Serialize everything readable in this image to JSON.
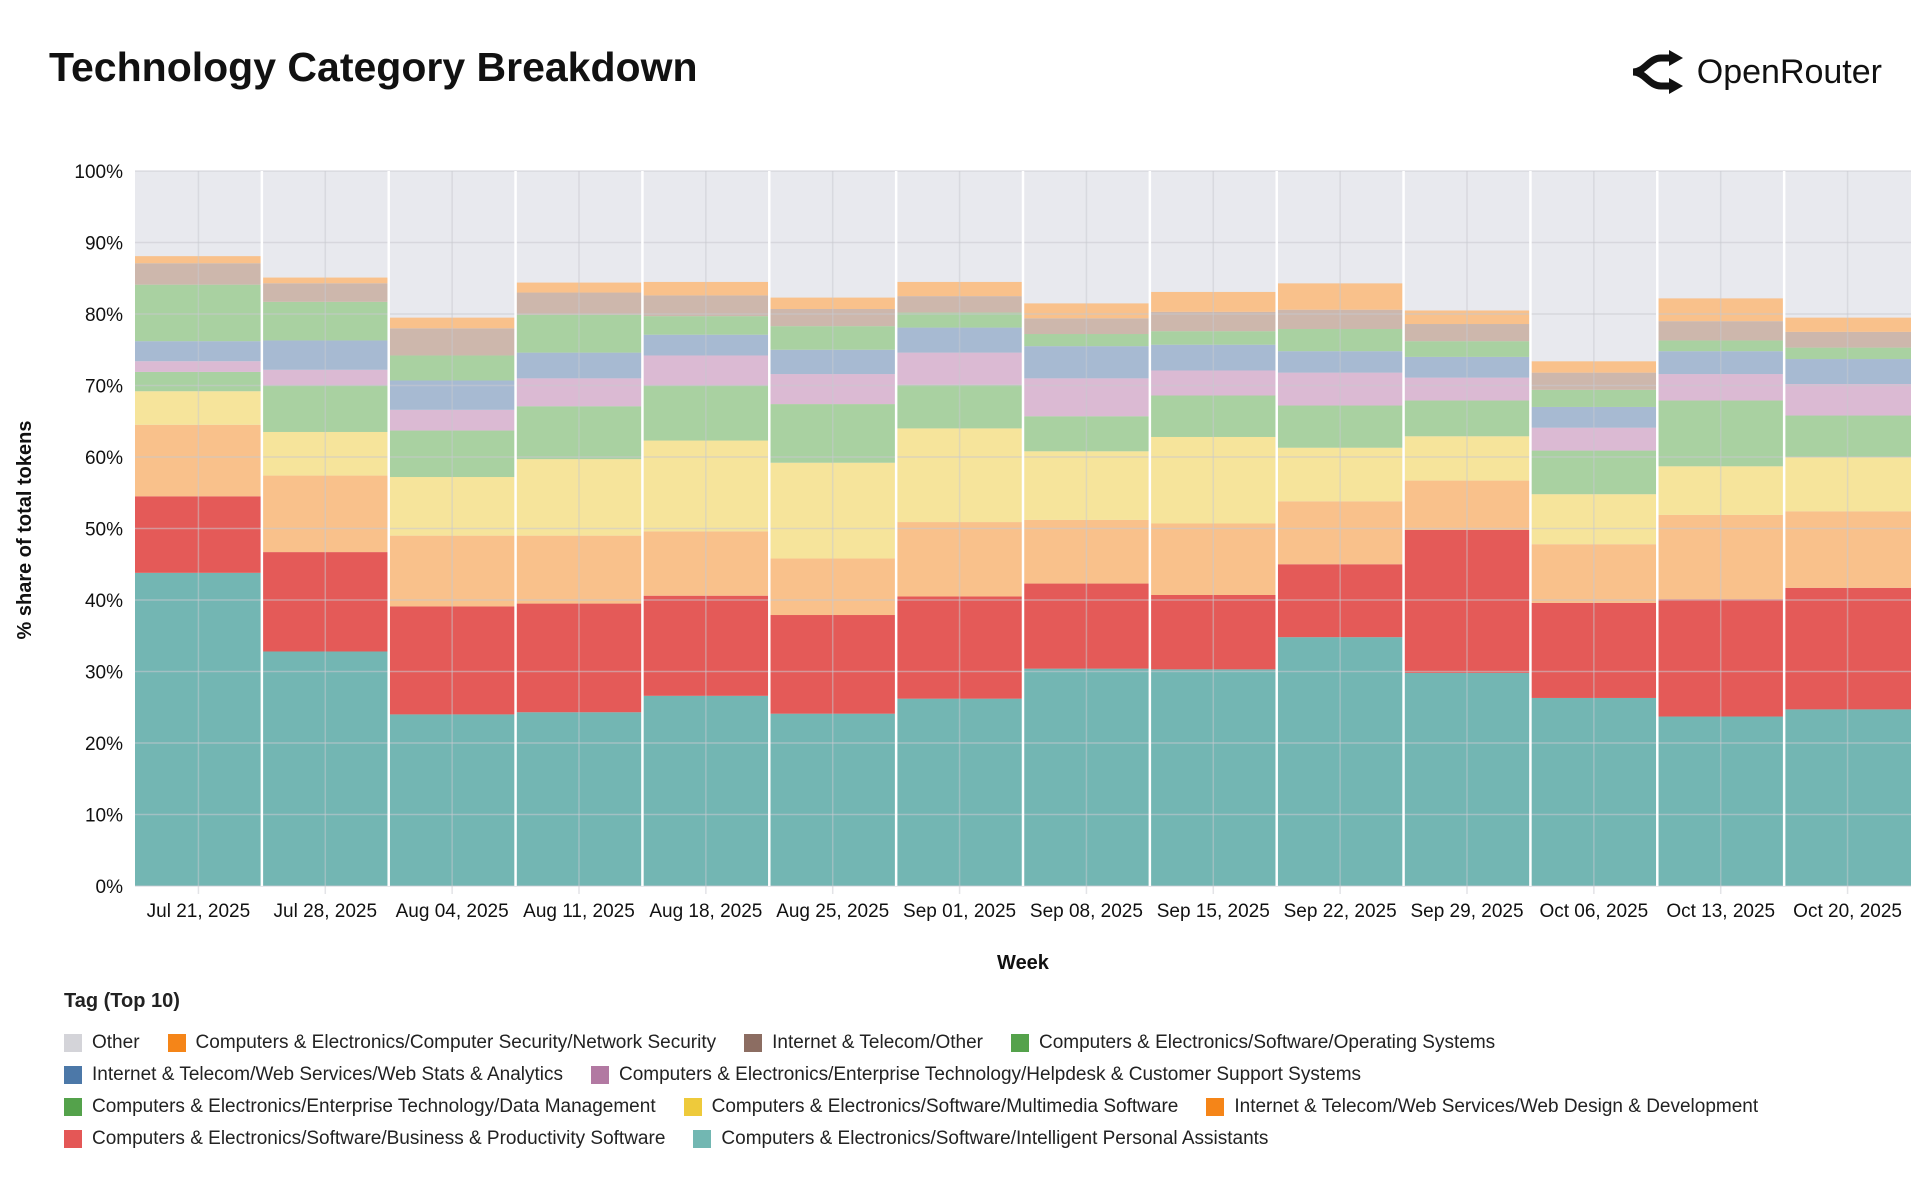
{
  "header": {
    "title": "Technology Category Breakdown",
    "brand": "OpenRouter",
    "brand_icon": "openrouter-logo-icon"
  },
  "chart_data": {
    "type": "bar",
    "stacked": true,
    "normalized": true,
    "title": "Technology Category Breakdown",
    "xlabel": "Week",
    "ylabel": "% share of total tokens",
    "ylim": [
      0,
      100
    ],
    "yticks": [
      "0%",
      "10%",
      "20%",
      "30%",
      "40%",
      "50%",
      "60%",
      "70%",
      "80%",
      "90%",
      "100%"
    ],
    "grid": true,
    "legend_title": "Tag (Top 10)",
    "legend_placement": "bottom",
    "categories": [
      "Jul 21, 2025",
      "Jul 28, 2025",
      "Aug 04, 2025",
      "Aug 11, 2025",
      "Aug 18, 2025",
      "Aug 25, 2025",
      "Sep 01, 2025",
      "Sep 08, 2025",
      "Sep 15, 2025",
      "Sep 22, 2025",
      "Sep 29, 2025",
      "Oct 06, 2025",
      "Oct 13, 2025",
      "Oct 20, 2025"
    ],
    "series": [
      {
        "name": "Computers & Electronics/Software/Intelligent Personal Assistants",
        "color": "#72b7b2",
        "fill": "#73b6b3",
        "values": [
          43.8,
          32.8,
          24.0,
          24.3,
          26.6,
          24.1,
          26.2,
          30.4,
          30.3,
          34.8,
          29.8,
          26.3,
          23.7,
          24.7
        ]
      },
      {
        "name": "Computers & Electronics/Software/Business & Productivity Software",
        "color": "#e45756",
        "fill": "#e45a58",
        "values": [
          10.7,
          13.9,
          15.1,
          15.2,
          14.0,
          13.8,
          14.3,
          11.9,
          10.4,
          10.2,
          20.0,
          13.3,
          16.4,
          17.0
        ]
      },
      {
        "name": "Internet & Telecom/Web Services/Web Design & Development",
        "color": "#f58518",
        "fill": "#f9c18b",
        "values": [
          10.0,
          10.7,
          9.9,
          9.5,
          9.0,
          7.9,
          10.4,
          8.9,
          10.0,
          8.8,
          6.9,
          8.2,
          11.8,
          10.7
        ]
      },
      {
        "name": "Computers & Electronics/Software/Multimedia Software",
        "color": "#eeca3b",
        "fill": "#f6e49b",
        "values": [
          4.7,
          6.1,
          8.2,
          10.7,
          12.7,
          13.4,
          13.1,
          9.6,
          12.1,
          7.5,
          6.2,
          7.0,
          6.8,
          7.6
        ]
      },
      {
        "name": "Computers & Electronics/Enterprise Technology/Data Management",
        "color": "#54a24b",
        "fill": "#a9d1a1",
        "values": [
          2.7,
          6.5,
          6.5,
          7.4,
          7.7,
          8.2,
          6.1,
          4.9,
          5.8,
          5.9,
          5.0,
          6.1,
          9.2,
          5.8
        ]
      },
      {
        "name": "Computers & Electronics/Enterprise Technology/Helpdesk & Customer Support Systems",
        "color": "#b279a2",
        "fill": "#dbbad3",
        "values": [
          1.5,
          2.2,
          2.9,
          3.9,
          4.2,
          4.2,
          4.5,
          5.3,
          3.5,
          4.6,
          3.2,
          3.2,
          3.7,
          4.4
        ]
      },
      {
        "name": "Internet & Telecom/Web Services/Web Stats & Analytics",
        "color": "#4c78a8",
        "fill": "#a7bad2",
        "values": [
          2.8,
          4.1,
          4.1,
          3.6,
          2.9,
          3.4,
          3.5,
          4.5,
          3.6,
          3.0,
          2.9,
          2.9,
          3.2,
          3.5
        ]
      },
      {
        "name": "Computers & Electronics/Software/Operating Systems",
        "color": "#54a24b",
        "fill": "#a9d1a1",
        "values": [
          7.9,
          5.4,
          3.5,
          5.3,
          2.6,
          3.3,
          2.1,
          1.7,
          1.9,
          3.1,
          2.2,
          2.4,
          1.5,
          1.6
        ]
      },
      {
        "name": "Internet & Telecom/Other",
        "color": "#8c6d62",
        "fill": "#cdb7ac",
        "values": [
          3.0,
          2.6,
          3.8,
          3.1,
          2.9,
          2.4,
          2.3,
          2.2,
          2.7,
          2.7,
          2.4,
          2.4,
          2.7,
          2.2
        ]
      },
      {
        "name": "Computers & Electronics/Computer Security/Network Security",
        "color": "#f58518",
        "fill": "#f9c18b",
        "values": [
          1.0,
          0.8,
          1.5,
          1.4,
          1.9,
          1.6,
          2.0,
          2.1,
          2.8,
          3.7,
          1.9,
          1.6,
          3.2,
          2.0
        ]
      },
      {
        "name": "Other",
        "color": "#d4d4d9",
        "fill": "#e8e9ee",
        "values": [
          11.9,
          14.9,
          20.5,
          15.6,
          15.5,
          17.7,
          15.5,
          18.5,
          16.9,
          15.7,
          19.5,
          26.6,
          17.8,
          20.5
        ]
      }
    ],
    "legend_rows": [
      [
        10,
        9,
        8,
        7
      ],
      [
        6,
        5
      ],
      [
        4,
        3,
        2
      ],
      [
        1,
        0
      ]
    ]
  },
  "legend": {
    "title": "Tag (Top 10)",
    "items": [
      {
        "label": "Other",
        "color": "#d4d4d9"
      },
      {
        "label": "Computers & Electronics/Computer Security/Network Security",
        "color": "#f58518"
      },
      {
        "label": "Internet & Telecom/Other",
        "color": "#8c6d62"
      },
      {
        "label": "Computers & Electronics/Software/Operating Systems",
        "color": "#54a24b"
      },
      {
        "label": "Internet & Telecom/Web Services/Web Stats & Analytics",
        "color": "#4c78a8"
      },
      {
        "label": "Computers & Electronics/Enterprise Technology/Helpdesk & Customer Support Systems",
        "color": "#b279a2"
      },
      {
        "label": "Computers & Electronics/Enterprise Technology/Data Management",
        "color": "#54a24b"
      },
      {
        "label": "Computers & Electronics/Software/Multimedia Software",
        "color": "#eeca3b"
      },
      {
        "label": "Internet & Telecom/Web Services/Web Design & Development",
        "color": "#f58518"
      },
      {
        "label": "Computers & Electronics/Software/Business & Productivity Software",
        "color": "#e45756"
      },
      {
        "label": "Computers & Electronics/Software/Intelligent Personal Assistants",
        "color": "#72b7b2"
      }
    ]
  }
}
